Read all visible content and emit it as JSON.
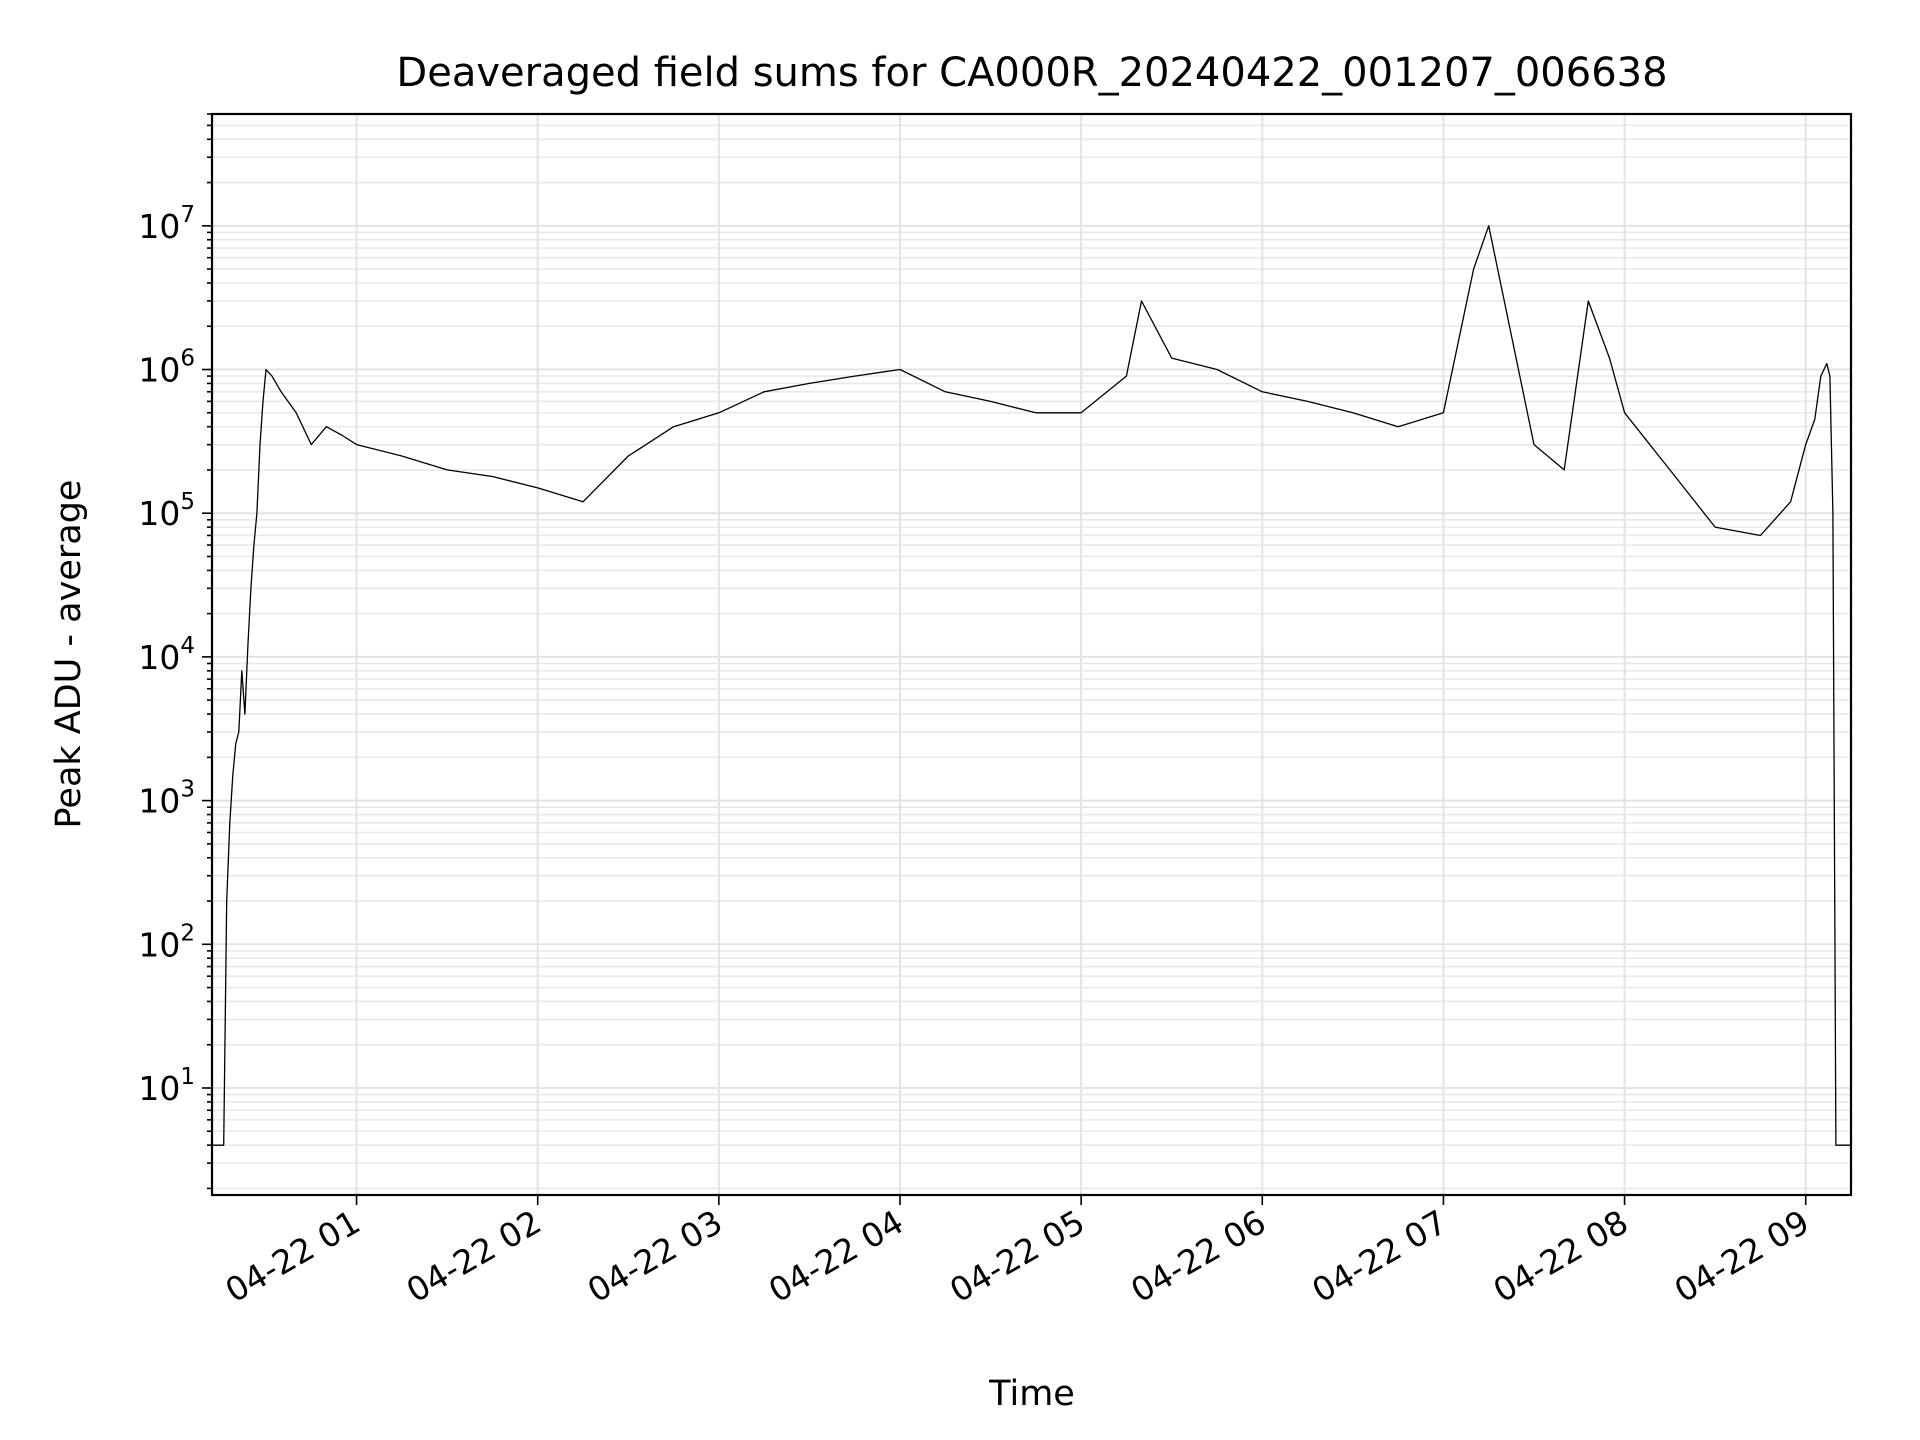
{
  "chart_data": {
    "type": "line",
    "title": "Deaveraged field sums for CA000R_20240422_001207_006638",
    "xlabel": "Time",
    "ylabel": "Peak ADU - average",
    "yscale": "log",
    "ylim": [
      1.8,
      60000000
    ],
    "xlim": [
      "2024-04-22 00:12:07",
      "2024-04-22 09:15:00"
    ],
    "grid": true,
    "legend": "none",
    "line_color": "#000000",
    "x_ticks": [
      {
        "value": "2024-04-22 01:00",
        "label": "04-22 01"
      },
      {
        "value": "2024-04-22 02:00",
        "label": "04-22 02"
      },
      {
        "value": "2024-04-22 03:00",
        "label": "04-22 03"
      },
      {
        "value": "2024-04-22 04:00",
        "label": "04-22 04"
      },
      {
        "value": "2024-04-22 05:00",
        "label": "04-22 05"
      },
      {
        "value": "2024-04-22 06:00",
        "label": "04-22 06"
      },
      {
        "value": "2024-04-22 07:00",
        "label": "04-22 07"
      },
      {
        "value": "2024-04-22 08:00",
        "label": "04-22 08"
      },
      {
        "value": "2024-04-22 09:00",
        "label": "04-22 09"
      }
    ],
    "y_ticks": [
      {
        "value": 10,
        "base": "10",
        "exp": "1"
      },
      {
        "value": 100,
        "base": "10",
        "exp": "2"
      },
      {
        "value": 1000,
        "base": "10",
        "exp": "3"
      },
      {
        "value": 10000,
        "base": "10",
        "exp": "4"
      },
      {
        "value": 100000,
        "base": "10",
        "exp": "5"
      },
      {
        "value": 1000000,
        "base": "10",
        "exp": "6"
      },
      {
        "value": 10000000,
        "base": "10",
        "exp": "7"
      }
    ],
    "series": [
      {
        "x": [
          "2024-04-22 00:12:07",
          "2024-04-22 00:14:00",
          "2024-04-22 00:15:00",
          "2024-04-22 00:16:00",
          "2024-04-22 00:17:00",
          "2024-04-22 00:18:00",
          "2024-04-22 00:19:00",
          "2024-04-22 00:20:00",
          "2024-04-22 00:21:00",
          "2024-04-22 00:22:00",
          "2024-04-22 00:23:00",
          "2024-04-22 00:24:00",
          "2024-04-22 00:25:00",
          "2024-04-22 00:26:00",
          "2024-04-22 00:27:00",
          "2024-04-22 00:28:00",
          "2024-04-22 00:29:00",
          "2024-04-22 00:30:00",
          "2024-04-22 00:32:00",
          "2024-04-22 00:35:00",
          "2024-04-22 00:40:00",
          "2024-04-22 00:45:00",
          "2024-04-22 00:50:00",
          "2024-04-22 00:55:00",
          "2024-04-22 01:00:00",
          "2024-04-22 01:15:00",
          "2024-04-22 01:30:00",
          "2024-04-22 01:45:00",
          "2024-04-22 02:00:00",
          "2024-04-22 02:15:00",
          "2024-04-22 02:30:00",
          "2024-04-22 02:45:00",
          "2024-04-22 03:00:00",
          "2024-04-22 03:15:00",
          "2024-04-22 03:30:00",
          "2024-04-22 03:45:00",
          "2024-04-22 04:00:00",
          "2024-04-22 04:15:00",
          "2024-04-22 04:30:00",
          "2024-04-22 04:45:00",
          "2024-04-22 05:00:00",
          "2024-04-22 05:15:00",
          "2024-04-22 05:20:00",
          "2024-04-22 05:30:00",
          "2024-04-22 05:45:00",
          "2024-04-22 06:00:00",
          "2024-04-22 06:15:00",
          "2024-04-22 06:30:00",
          "2024-04-22 06:45:00",
          "2024-04-22 07:00:00",
          "2024-04-22 07:10:00",
          "2024-04-22 07:15:00",
          "2024-04-22 07:30:00",
          "2024-04-22 07:40:00",
          "2024-04-22 07:48:00",
          "2024-04-22 07:55:00",
          "2024-04-22 08:00:00",
          "2024-04-22 08:15:00",
          "2024-04-22 08:30:00",
          "2024-04-22 08:45:00",
          "2024-04-22 08:55:00",
          "2024-04-22 09:00:00",
          "2024-04-22 09:03:00",
          "2024-04-22 09:05:00",
          "2024-04-22 09:07:00",
          "2024-04-22 09:08:00",
          "2024-04-22 09:09:00",
          "2024-04-22 09:10:00",
          "2024-04-22 09:15:00"
        ],
        "y": [
          4,
          4,
          4,
          4,
          200,
          700,
          1500,
          2500,
          3000,
          8000,
          4000,
          12000,
          30000,
          60000,
          100000,
          300000,
          600000,
          1000000,
          900000,
          700000,
          500000,
          300000,
          400000,
          350000,
          300000,
          250000,
          200000,
          180000,
          150000,
          120000,
          250000,
          400000,
          500000,
          700000,
          800000,
          900000,
          1000000,
          700000,
          600000,
          500000,
          500000,
          900000,
          3000000,
          1200000,
          1000000,
          700000,
          600000,
          500000,
          400000,
          500000,
          5000000,
          10000000,
          300000,
          200000,
          3000000,
          1200000,
          500000,
          200000,
          80000,
          70000,
          120000,
          300000,
          450000,
          900000,
          1100000,
          900000,
          100000,
          4,
          4
        ]
      }
    ]
  }
}
